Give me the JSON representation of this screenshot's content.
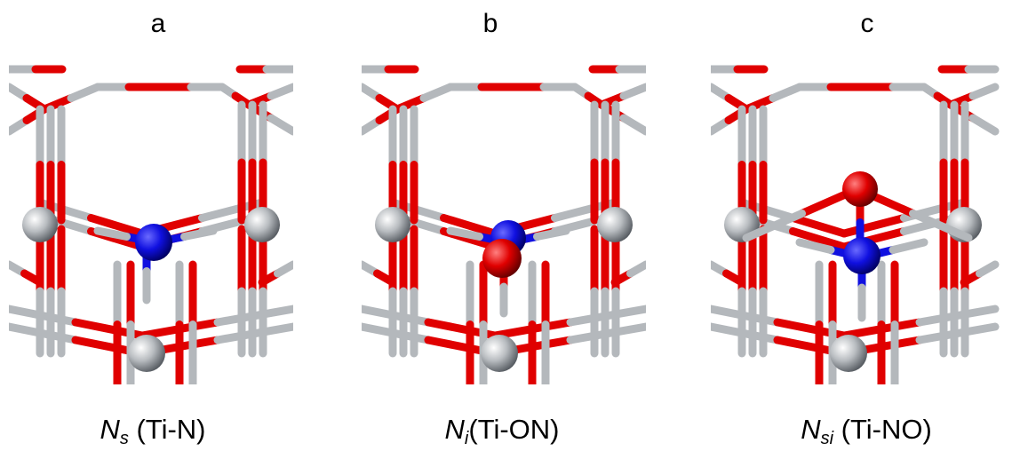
{
  "panels": [
    {
      "letter": "a",
      "caption": {
        "symbol": "N",
        "subscript": "s",
        "label": " (Ti-N)"
      }
    },
    {
      "letter": "b",
      "caption": {
        "symbol": "N",
        "subscript": "i",
        "label": "(Ti-ON)"
      }
    },
    {
      "letter": "c",
      "caption": {
        "symbol": "N",
        "subscript": "si",
        "label": " (Ti-NO)"
      }
    }
  ]
}
